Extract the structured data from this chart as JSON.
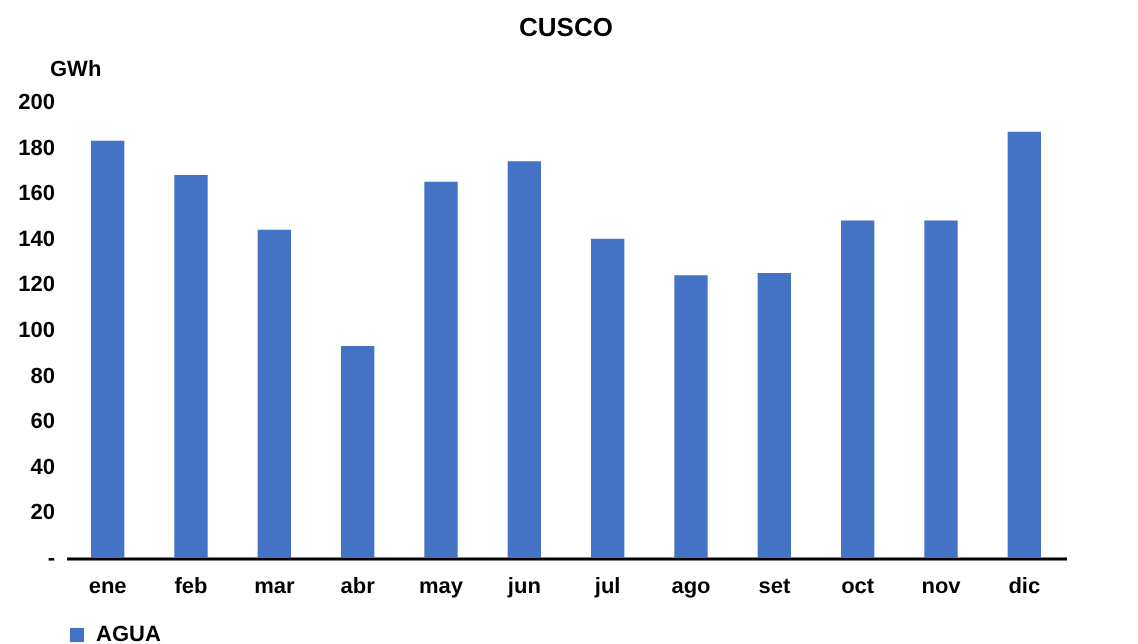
{
  "chart_data": {
    "type": "bar",
    "title": "CUSCO",
    "ylabel": "GWh",
    "categories": [
      "ene",
      "feb",
      "mar",
      "abr",
      "may",
      "jun",
      "jul",
      "ago",
      "set",
      "oct",
      "nov",
      "dic"
    ],
    "series": [
      {
        "name": "AGUA",
        "color": "#4472c4",
        "values": [
          183,
          168,
          144,
          93,
          165,
          174,
          140,
          124,
          125,
          148,
          148,
          187
        ]
      }
    ],
    "ylim": [
      0,
      200
    ],
    "yticks": [
      {
        "value": 0,
        "label": "-"
      },
      20,
      40,
      60,
      80,
      100,
      120,
      140,
      160,
      180,
      200
    ],
    "grid": false,
    "legend": "bottom"
  }
}
